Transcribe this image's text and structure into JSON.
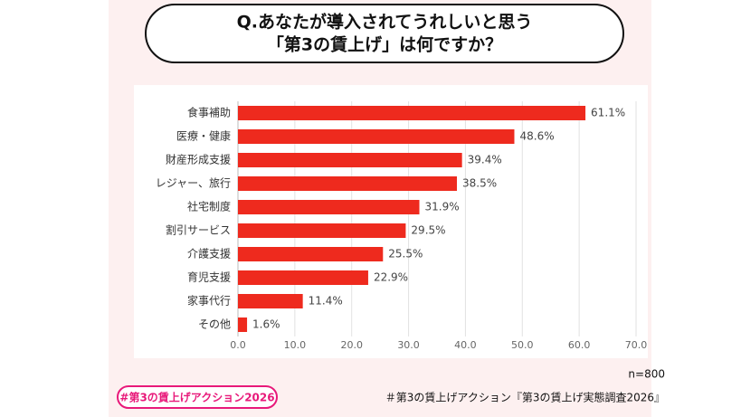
{
  "chart_data": {
    "type": "bar",
    "orientation": "horizontal",
    "title": [
      "Q.あなたが導入されてうれしいと思う",
      "「第3の賃上げ」は何ですか？"
    ],
    "categories": [
      "食事補助",
      "医療・健康",
      "財産形成支援",
      "レジャー、旅行",
      "社宅制度",
      "割引サービス",
      "介護支援",
      "育児支援",
      "家事代行",
      "その他"
    ],
    "values": [
      61.1,
      48.6,
      39.4,
      38.5,
      31.9,
      29.5,
      25.5,
      22.9,
      11.4,
      1.6
    ],
    "value_labels": [
      "61.1%",
      "48.6%",
      "39.4%",
      "38.5%",
      "31.9%",
      "29.5%",
      "25.5%",
      "22.9%",
      "11.4%",
      "1.6%"
    ],
    "color": "#ee2a1e",
    "xlim": [
      0,
      70
    ],
    "xticks": [
      {
        "value": 0,
        "label": "0.0"
      },
      {
        "value": 10,
        "label": "10.0"
      },
      {
        "value": 20,
        "label": "20.0"
      },
      {
        "value": 30,
        "label": "30.0"
      },
      {
        "value": 40,
        "label": "40.0"
      },
      {
        "value": 50,
        "label": "50.0"
      },
      {
        "value": 60,
        "label": "60.0"
      },
      {
        "value": 70,
        "label": "70.0"
      }
    ],
    "grid": true,
    "note": "n=800",
    "source": "＃第3の賃上げアクション『第3の賃上げ実態調査2026』",
    "badge": "#第3の賃上げアクション2026"
  }
}
